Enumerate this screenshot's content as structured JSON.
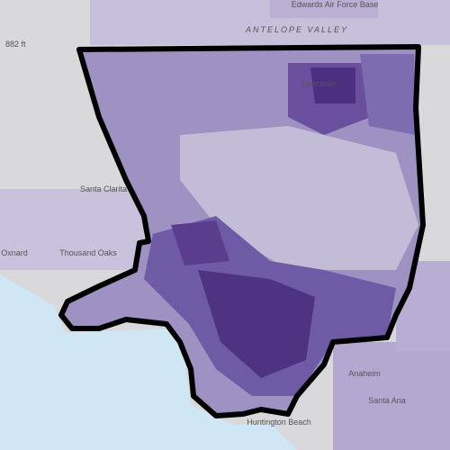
{
  "map": {
    "labels": [
      {
        "text": "Edwards Air Force Base"
      },
      {
        "text": "ANTELOPE VALLEY"
      },
      {
        "text": "882 ft"
      },
      {
        "text": "Lancaster"
      },
      {
        "text": "Santa Clarita"
      },
      {
        "text": "Thousand Oaks"
      },
      {
        "text": "Oxnard"
      },
      {
        "text": "Huntington Beach"
      },
      {
        "text": "Anaheim"
      },
      {
        "text": "Santa Ana"
      }
    ]
  }
}
